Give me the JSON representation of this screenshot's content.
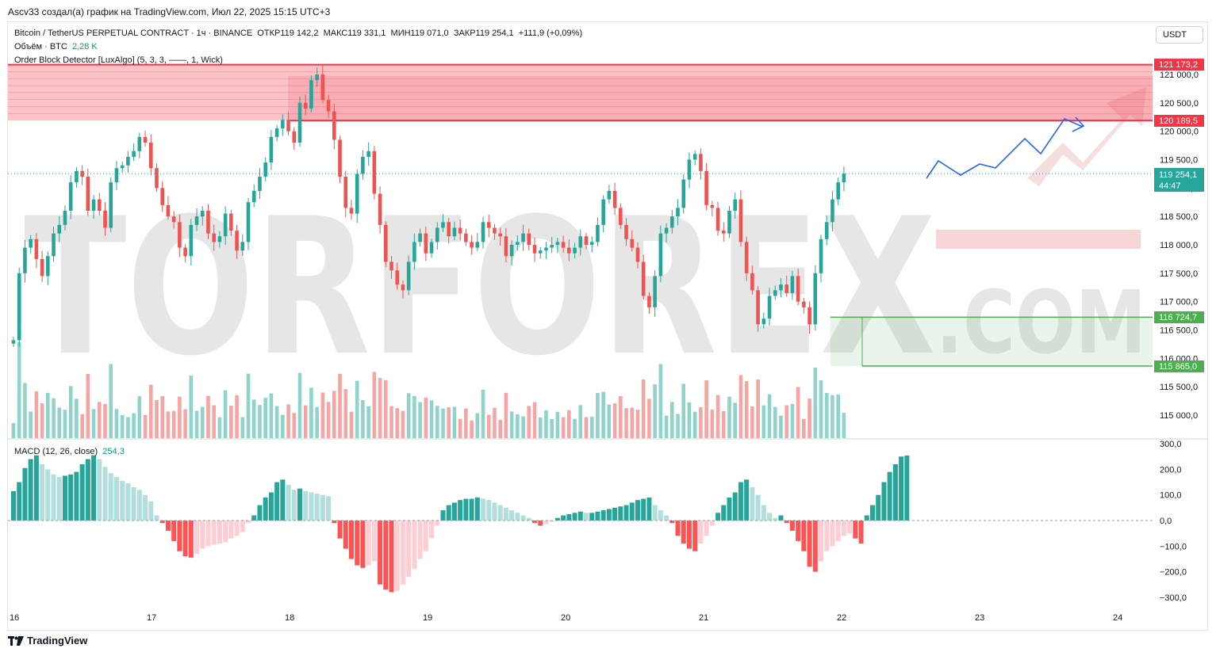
{
  "header": {
    "created_by": "Ascv33 создал(а) график на TradingView.com, Июл 22, 2025 15:15 UTC+3"
  },
  "legend": {
    "symbol": "Bitcoin / TetherUS PERPETUAL CONTRACT · 1ч · BINANCE",
    "open": "ОТКР119 142,2",
    "high": "МАКС119 331,1",
    "low": "МИН119 071,0",
    "close": "ЗАКР119 254,1",
    "change": "+111,9 (+0,09%)",
    "volume_label": "Объём · BTC",
    "volume_value": "2,28 K",
    "indicator": "Order Block Detector [LuxAlgo] (5, 3, 3, ——, 1, Wick)",
    "macd_label": "MACD (12, 26, close)",
    "macd_value": "254,3"
  },
  "currency_button": "USDT",
  "footer": {
    "brand": "TradingView"
  },
  "watermark": {
    "main": "TORFOREX",
    "sub": ".COM"
  },
  "colors": {
    "up": "#26a69a",
    "down": "#ef5350",
    "vol_up": "#8fd3cb",
    "vol_down": "#f5a5a3",
    "resistance": "#f23645",
    "support": "#4caf50",
    "forecast": "#2962ff"
  },
  "price_tags": {
    "r_top": "121 173,2",
    "r_bottom": "120 189,5",
    "last": "119 254,1",
    "countdown": "44:47",
    "s_top": "116 724,7",
    "s_bottom": "115 865,0"
  },
  "chart_data": {
    "type": "candlestick",
    "symbol": "BTCUSDT.P",
    "timeframe": "1h",
    "x_ticks": [
      "16",
      "17",
      "18",
      "19",
      "20",
      "21",
      "22",
      "23",
      "24"
    ],
    "price_ticks": [
      "115 000,0",
      "115 500,0",
      "116 000,0",
      "116 500,0",
      "117 000,0",
      "117 500,0",
      "118 000,0",
      "118 500,0",
      "119 000,0",
      "119 500,0",
      "120 000,0",
      "120 500,0",
      "121 000,0"
    ],
    "ylim": [
      114700,
      121600
    ],
    "macd_ticks": [
      "300,0",
      "200,0",
      "100,0",
      "0,0",
      "−100,0",
      "−200,0",
      "−300,0"
    ],
    "macd_ylim": [
      -330,
      330
    ],
    "resistance_zone": [
      120189.5,
      121173.2
    ],
    "support_zone": [
      115865.0,
      116724.7
    ],
    "last_price": 119254.1,
    "closes": [
      116320,
      117500,
      117950,
      118100,
      117750,
      117450,
      117800,
      118200,
      118350,
      118600,
      119100,
      119300,
      119200,
      118600,
      118800,
      118600,
      118300,
      119100,
      119350,
      119400,
      119550,
      119650,
      119900,
      119800,
      119350,
      119000,
      118700,
      118500,
      118400,
      117950,
      117800,
      118350,
      118500,
      118600,
      118200,
      118050,
      118150,
      118550,
      118250,
      117900,
      118050,
      118750,
      118950,
      119200,
      119450,
      119900,
      120050,
      120200,
      120000,
      119800,
      120500,
      120400,
      120900,
      121000,
      120550,
      120350,
      119850,
      119200,
      118650,
      118550,
      119250,
      119550,
      119650,
      118900,
      118350,
      117700,
      117550,
      117300,
      117200,
      117700,
      118050,
      118200,
      117850,
      118050,
      118300,
      118400,
      118150,
      118300,
      118200,
      118050,
      117950,
      118050,
      118400,
      118300,
      118200,
      118150,
      117800,
      118000,
      118050,
      118200,
      118000,
      117850,
      117900,
      117950,
      118000,
      118050,
      117950,
      117850,
      117950,
      118150,
      118000,
      118050,
      118350,
      118800,
      118950,
      118650,
      118350,
      118100,
      117950,
      117700,
      117100,
      116900,
      117450,
      118200,
      118300,
      118500,
      118650,
      119150,
      119500,
      119600,
      119300,
      118700,
      118650,
      118250,
      118200,
      118600,
      118800,
      118050,
      117500,
      117200,
      116600,
      116700,
      117100,
      117200,
      117300,
      117150,
      117450,
      117000,
      116900,
      116600,
      117500,
      118100,
      118400,
      118800,
      119100,
      119254
    ],
    "macd_hist": [
      115,
      150,
      205,
      240,
      255,
      220,
      200,
      180,
      170,
      175,
      180,
      190,
      220,
      240,
      255,
      240,
      210,
      185,
      170,
      155,
      145,
      130,
      120,
      100,
      75,
      20,
      -10,
      -40,
      -80,
      -120,
      -140,
      -145,
      -130,
      -110,
      -100,
      -95,
      -90,
      -85,
      -70,
      -60,
      -45,
      -10,
      20,
      60,
      90,
      110,
      150,
      160,
      140,
      120,
      125,
      115,
      110,
      105,
      100,
      95,
      -10,
      -70,
      -110,
      -150,
      -175,
      -185,
      -175,
      -160,
      -250,
      -270,
      -280,
      -275,
      -250,
      -220,
      -190,
      -150,
      -120,
      -70,
      -20,
      40,
      60,
      70,
      80,
      85,
      85,
      90,
      85,
      80,
      70,
      60,
      50,
      40,
      30,
      20,
      10,
      -10,
      -20,
      -15,
      -5,
      10,
      20,
      25,
      30,
      35,
      30,
      30,
      35,
      40,
      45,
      50,
      55,
      60,
      70,
      80,
      85,
      90,
      60,
      40,
      20,
      -10,
      -60,
      -90,
      -110,
      -120,
      -90,
      -60,
      -20,
      30,
      60,
      90,
      110,
      150,
      160,
      130,
      100,
      60,
      30,
      10,
      20,
      -10,
      -40,
      -80,
      -120,
      -180,
      -200,
      -160,
      -120,
      -100,
      -80,
      -60,
      -50,
      -70,
      -90,
      20,
      60,
      100,
      150,
      190,
      220,
      250,
      254
    ]
  }
}
